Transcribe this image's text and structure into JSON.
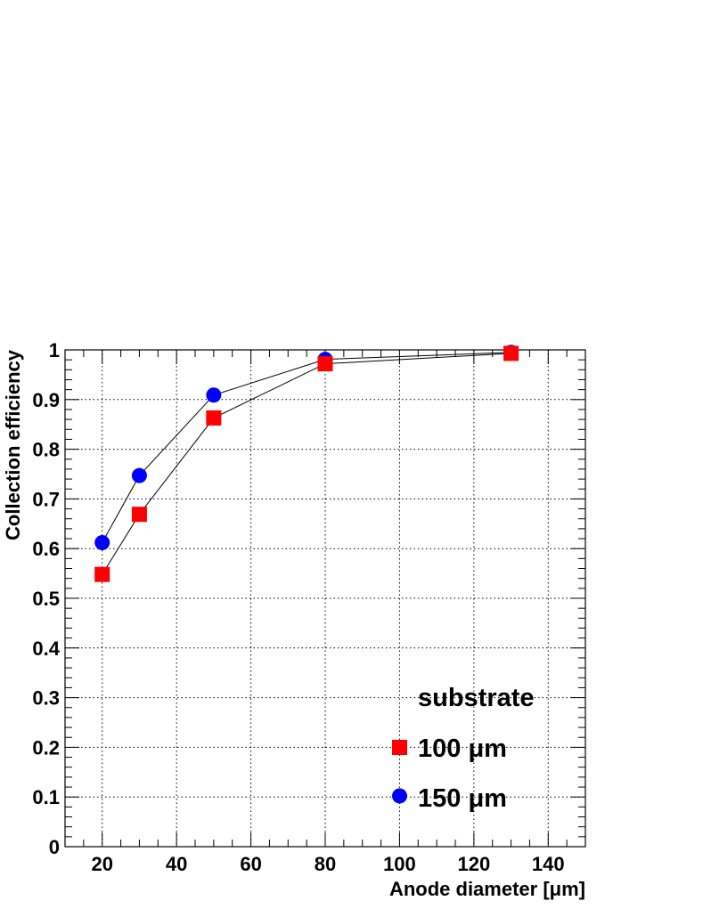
{
  "chart_data": {
    "type": "scatter",
    "xlabel": "Anode diameter [μm]",
    "ylabel": "Collection efficiency",
    "xlim": [
      10,
      150
    ],
    "ylim": [
      0,
      1
    ],
    "x_ticks": [
      "20",
      "40",
      "60",
      "80",
      "100",
      "120",
      "140"
    ],
    "y_ticks": [
      "0",
      "0.1",
      "0.2",
      "0.3",
      "0.4",
      "0.5",
      "0.6",
      "0.7",
      "0.8",
      "0.9",
      "1"
    ],
    "grid": true,
    "legend": {
      "title": "substrate",
      "position": "bottom-right"
    },
    "series": [
      {
        "name": "100 μm",
        "marker": "square",
        "color": "#ff0000",
        "x": [
          20,
          30,
          50,
          80,
          130
        ],
        "y": [
          0.548,
          0.669,
          0.863,
          0.972,
          0.993
        ]
      },
      {
        "name": "150 μm",
        "marker": "circle",
        "color": "#0000ff",
        "x": [
          20,
          30,
          50,
          80,
          130
        ],
        "y": [
          0.612,
          0.747,
          0.909,
          0.981,
          0.995
        ]
      }
    ]
  }
}
